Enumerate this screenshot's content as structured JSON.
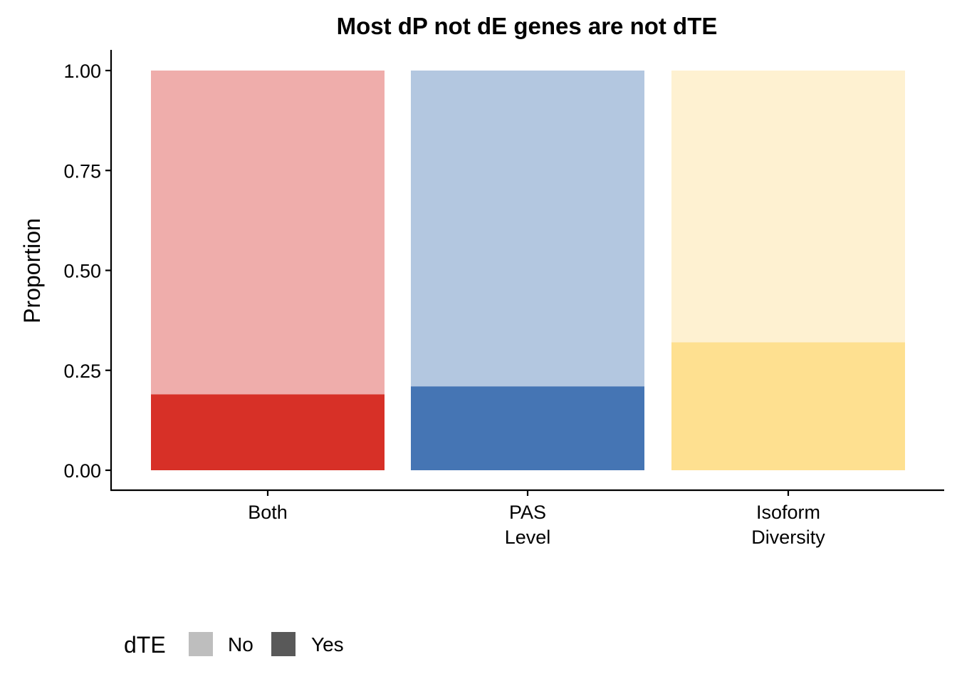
{
  "chart_data": {
    "type": "bar",
    "stacked": true,
    "title": "Most dP not dE genes are not dTE",
    "xlabel": "",
    "ylabel": "Proportion",
    "ylim": [
      0,
      1
    ],
    "yticks": [
      "0.00",
      "0.25",
      "0.50",
      "0.75",
      "1.00"
    ],
    "ytick_values": [
      0,
      0.25,
      0.5,
      0.75,
      1.0
    ],
    "categories": [
      [
        "Both"
      ],
      [
        "PAS",
        "Level"
      ],
      [
        "Isoform",
        "Diversity"
      ]
    ],
    "series": [
      {
        "name": "No",
        "values": [
          0.81,
          0.79,
          0.68
        ],
        "colors": [
          "#EFADAB",
          "#B3C7E0",
          "#FEF1D1"
        ]
      },
      {
        "name": "Yes",
        "values": [
          0.19,
          0.21,
          0.32
        ],
        "colors": [
          "#D73027",
          "#4575B4",
          "#FEE090"
        ]
      }
    ],
    "legend": {
      "title": "dTE",
      "position": "bottom-left",
      "entries": [
        {
          "label": "No",
          "color": "#BEBEBE"
        },
        {
          "label": "Yes",
          "color": "#595959"
        }
      ]
    },
    "grid": false
  }
}
